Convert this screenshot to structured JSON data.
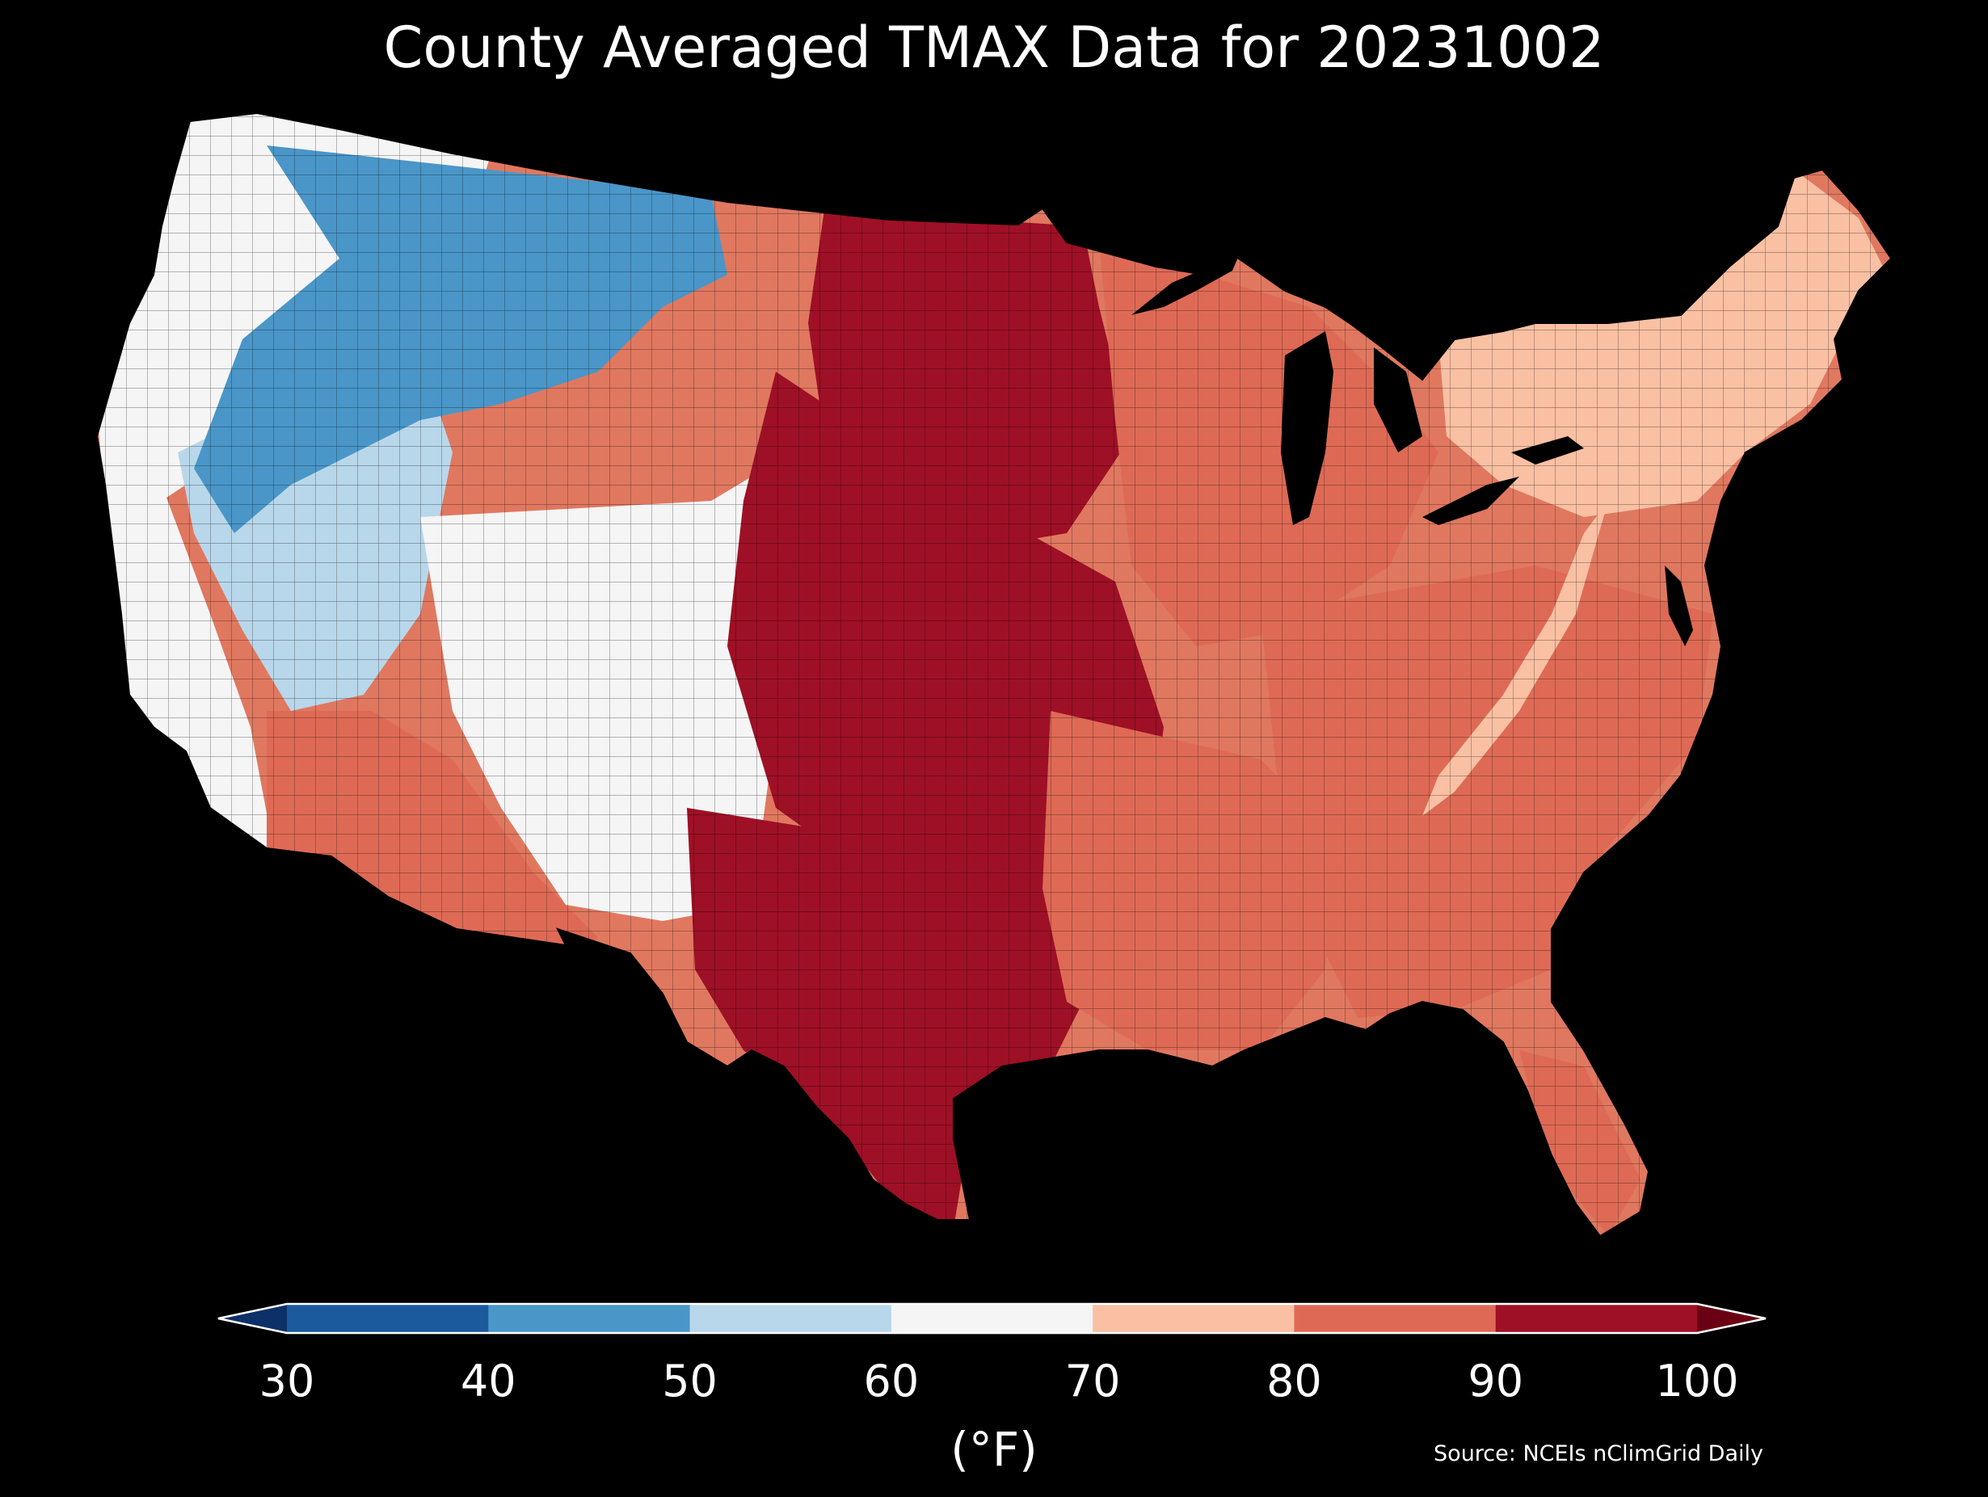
{
  "title": "County Averaged TMAX Data for 20231002",
  "colorbar": {
    "ticks": [
      "30",
      "40",
      "50",
      "60",
      "70",
      "80",
      "90",
      "100"
    ],
    "unit": "(°F)",
    "colors": [
      "#1c5a9e",
      "#4a96c8",
      "#b9d7ea",
      "#f5f5f5",
      "#f9c0a3",
      "#de6a55",
      "#9e1026"
    ],
    "under_color": "#0c3068",
    "over_color": "#6a0013",
    "bins": [
      [
        30,
        40
      ],
      [
        40,
        50
      ],
      [
        50,
        60
      ],
      [
        60,
        70
      ],
      [
        70,
        80
      ],
      [
        80,
        90
      ],
      [
        90,
        100
      ]
    ],
    "extend": "both"
  },
  "source": "Source: NCEIs nClimGrid Daily",
  "regions": [
    {
      "id": "pacific-northwest",
      "value": 63
    },
    {
      "id": "northern-rockies",
      "value": 48
    },
    {
      "id": "great-basin",
      "value": 52
    },
    {
      "id": "california-coast",
      "value": 68
    },
    {
      "id": "southwest-desert",
      "value": 80
    },
    {
      "id": "southern-rockies",
      "value": 68
    },
    {
      "id": "northern-plains-east",
      "value": 92
    },
    {
      "id": "central-plains",
      "value": 90
    },
    {
      "id": "texas",
      "value": 92
    },
    {
      "id": "midwest",
      "value": 87
    },
    {
      "id": "south",
      "value": 88
    },
    {
      "id": "southeast",
      "value": 82
    },
    {
      "id": "appalachians",
      "value": 72
    },
    {
      "id": "northeast",
      "value": 76
    },
    {
      "id": "florida-south",
      "value": 88
    }
  ]
}
